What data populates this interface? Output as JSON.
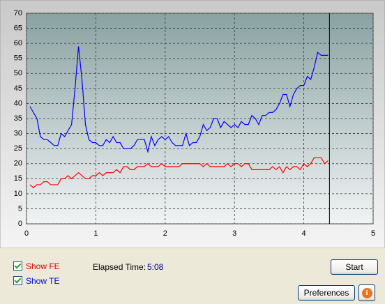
{
  "chart_data": {
    "type": "line",
    "x": [
      0.05,
      0.1,
      0.15,
      0.2,
      0.25,
      0.3,
      0.35,
      0.4,
      0.45,
      0.5,
      0.55,
      0.6,
      0.65,
      0.7,
      0.75,
      0.8,
      0.85,
      0.9,
      0.95,
      1.0,
      1.05,
      1.1,
      1.15,
      1.2,
      1.25,
      1.3,
      1.35,
      1.4,
      1.45,
      1.5,
      1.55,
      1.6,
      1.65,
      1.7,
      1.75,
      1.8,
      1.85,
      1.9,
      1.95,
      2.0,
      2.05,
      2.1,
      2.15,
      2.2,
      2.25,
      2.3,
      2.35,
      2.4,
      2.45,
      2.5,
      2.55,
      2.6,
      2.65,
      2.7,
      2.75,
      2.8,
      2.85,
      2.9,
      2.95,
      3.0,
      3.05,
      3.1,
      3.15,
      3.2,
      3.25,
      3.3,
      3.35,
      3.4,
      3.45,
      3.5,
      3.55,
      3.6,
      3.65,
      3.7,
      3.75,
      3.8,
      3.85,
      3.9,
      3.95,
      4.0,
      4.05,
      4.1,
      4.15,
      4.2,
      4.25,
      4.3,
      4.35
    ],
    "series": [
      {
        "color": "#ff0000",
        "values": [
          13,
          12,
          13,
          13,
          14,
          14,
          13,
          13,
          13,
          15,
          15,
          16,
          15,
          16,
          17,
          16,
          15,
          15,
          16,
          16,
          17,
          16,
          17,
          17,
          17,
          18,
          17,
          19,
          19,
          18,
          18,
          19,
          19,
          19,
          20,
          19,
          19,
          19,
          20,
          19,
          19,
          19,
          19,
          19,
          20,
          20,
          20,
          20,
          20,
          20,
          19,
          20,
          19,
          19,
          19,
          19,
          19,
          20,
          19,
          20,
          20,
          19,
          20,
          20,
          18,
          18,
          18,
          18,
          18,
          18,
          19,
          18,
          19,
          17,
          19,
          18,
          19,
          19,
          18,
          20,
          19,
          20,
          22,
          22,
          22,
          20,
          21
        ]
      },
      {
        "color": "#0000ff",
        "values": [
          39,
          37,
          35,
          29,
          28,
          28,
          27,
          26,
          26,
          30,
          29,
          31,
          33,
          45,
          59,
          48,
          33,
          28,
          27,
          27,
          26,
          26,
          28,
          27,
          29,
          27,
          27,
          25,
          25,
          25,
          26,
          28,
          28,
          28,
          24,
          29,
          26,
          28,
          29,
          28,
          29,
          27,
          26,
          26,
          26,
          30,
          26,
          27,
          27,
          29,
          33,
          31,
          32,
          35,
          35,
          32,
          34,
          33,
          32,
          33,
          32,
          34,
          33,
          33,
          36,
          35,
          33,
          36,
          36,
          37,
          37,
          38,
          40,
          43,
          43,
          39,
          43,
          45,
          46,
          46,
          49,
          48,
          52,
          57,
          56,
          56,
          56
        ]
      }
    ],
    "xlim": [
      0,
      5
    ],
    "xticks": [
      0,
      1,
      2,
      3,
      4,
      5
    ],
    "ylim": [
      0,
      70
    ],
    "yticks": [
      0,
      5,
      10,
      15,
      20,
      25,
      30,
      35,
      40,
      45,
      50,
      55,
      60,
      65,
      70
    ],
    "grid": true,
    "cursor_x": 4.37
  },
  "controls": {
    "show_fe": "Show FE",
    "show_te": "Show TE",
    "elapsed_label": "Elapsed Time:",
    "elapsed_value": "5:08",
    "start": "Start",
    "preferences": "Preferences",
    "info": "i"
  }
}
